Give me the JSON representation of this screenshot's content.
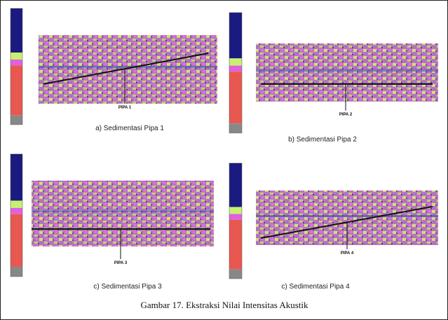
{
  "figure": {
    "panels": [
      {
        "pipe_label": "PIPA 1",
        "caption": "a) Sedimentasi Pipa 1"
      },
      {
        "pipe_label": "PIPA 2",
        "caption": "b) Sedimentasi Pipa 2"
      },
      {
        "pipe_label": "PIPA 3",
        "caption": "c) Sedimentasi Pipa 3"
      },
      {
        "pipe_label": "PIPA 4",
        "caption": "c) Sedimentasi Pipa 4"
      }
    ],
    "caption": "Gambar 17. Ekstraksi Nilai Intensitas Akustik"
  }
}
